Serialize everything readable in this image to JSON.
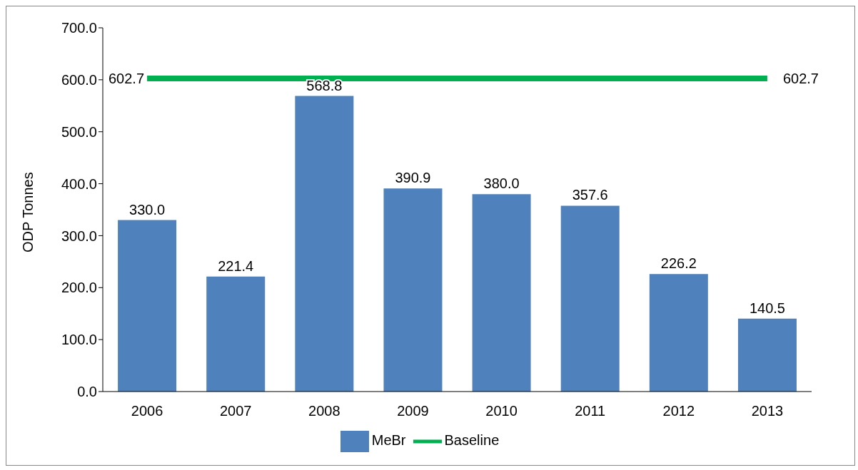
{
  "chart_data": {
    "type": "bar",
    "ylabel": "ODP Tonnes",
    "categories": [
      "2006",
      "2007",
      "2008",
      "2009",
      "2010",
      "2011",
      "2012",
      "2013"
    ],
    "series": [
      {
        "name": "MeBr",
        "color": "#4f81bd",
        "values": [
          330.0,
          221.4,
          568.8,
          390.9,
          380.0,
          357.6,
          226.2,
          140.5
        ],
        "value_labels": [
          "330.0",
          "221.4",
          "568.8",
          "390.9",
          "380.0",
          "357.6",
          "226.2",
          "140.5"
        ]
      },
      {
        "name": "Baseline",
        "type": "line",
        "color": "#00b050",
        "values": [
          602.7,
          602.7,
          602.7,
          602.7,
          602.7,
          602.7,
          602.7,
          602.7
        ],
        "value_labels": [
          "602.7",
          null,
          null,
          null,
          null,
          null,
          null,
          "602.7"
        ]
      }
    ],
    "ylim": [
      0,
      700
    ],
    "yticks": [
      {
        "value": 0,
        "label": "0.0"
      },
      {
        "value": 100,
        "label": "100.0"
      },
      {
        "value": 200,
        "label": "200.0"
      },
      {
        "value": 300,
        "label": "300.0"
      },
      {
        "value": 400,
        "label": "400.0"
      },
      {
        "value": 500,
        "label": "500.0"
      },
      {
        "value": 600,
        "label": "600.0"
      },
      {
        "value": 700,
        "label": "700.0"
      }
    ],
    "legend": "bottom",
    "marker": "none",
    "line_style": "solid"
  }
}
